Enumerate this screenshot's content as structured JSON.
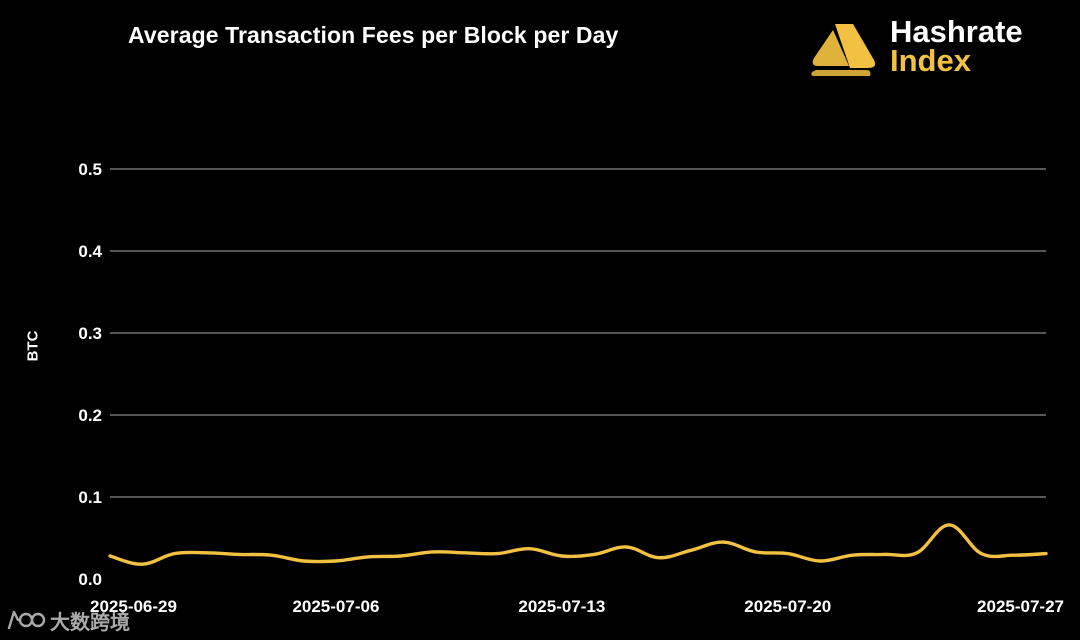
{
  "chart_data": {
    "type": "line",
    "title": "Average Transaction Fees per Block per Day",
    "ylabel": "BTC",
    "xlabel": "",
    "ylim": [
      0,
      0.5
    ],
    "yticks": [
      "0.0",
      "0.1",
      "0.2",
      "0.3",
      "0.4",
      "0.5"
    ],
    "xticks": [
      "2025-06-29",
      "2025-07-06",
      "2025-07-13",
      "2025-07-20",
      "2025-07-27"
    ],
    "grid": true,
    "legend": "none",
    "series": [
      {
        "x": [
          "2025-06-29",
          "2025-06-30",
          "2025-07-01",
          "2025-07-02",
          "2025-07-03",
          "2025-07-04",
          "2025-07-05",
          "2025-07-06",
          "2025-07-07",
          "2025-07-08",
          "2025-07-09",
          "2025-07-10",
          "2025-07-11",
          "2025-07-12",
          "2025-07-13",
          "2025-07-14",
          "2025-07-15",
          "2025-07-16",
          "2025-07-17",
          "2025-07-18",
          "2025-07-19",
          "2025-07-20",
          "2025-07-21",
          "2025-07-22",
          "2025-07-23",
          "2025-07-24",
          "2025-07-25",
          "2025-07-26",
          "2025-07-27",
          "2025-07-28"
        ],
        "values": [
          0.028,
          0.018,
          0.031,
          0.032,
          0.03,
          0.029,
          0.022,
          0.022,
          0.027,
          0.028,
          0.033,
          0.032,
          0.031,
          0.037,
          0.028,
          0.03,
          0.039,
          0.026,
          0.035,
          0.045,
          0.033,
          0.031,
          0.022,
          0.029,
          0.03,
          0.032,
          0.066,
          0.031,
          0.029,
          0.031
        ],
        "color": "#f2c141"
      }
    ]
  },
  "brand": {
    "line1": "Hashrate",
    "line2": "Index",
    "accent": "#f2c141",
    "logo_icon": "hashrate-index-logo"
  },
  "watermark": {
    "text": "大数跨境",
    "icon": "watermark-logo-icon"
  },
  "colors": {
    "background": "#000000",
    "grid": "#8a8a8a",
    "text": "#ffffff",
    "line": "#f2c141"
  }
}
